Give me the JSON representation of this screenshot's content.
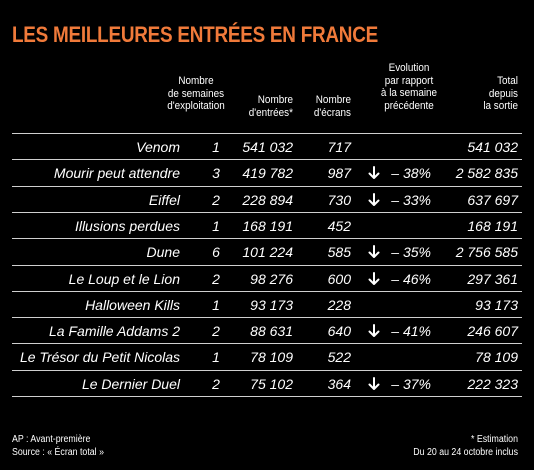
{
  "title": "LES MEILLEURES ENTRÉES EN FRANCE",
  "headers": {
    "weeks": "Nombre\nde semaines\nd'exploitation",
    "entrees": "Nombre\nd'entrées*",
    "ecrans": "Nombre\nd'écrans",
    "evolution": "Evolution\npar rapport\nà la semaine\nprécédente",
    "total": "Total\ndepuis\nla sortie"
  },
  "rows": [
    {
      "title": "Venom",
      "weeks": "1",
      "entrees": "541 032",
      "ecrans": "717",
      "arrow": "",
      "evolution": "",
      "total": "541 032"
    },
    {
      "title": "Mourir peut attendre",
      "weeks": "3",
      "entrees": "419 782",
      "ecrans": "987",
      "arrow": "down",
      "evolution": "– 38%",
      "total": "2 582 835"
    },
    {
      "title": "Eiffel",
      "weeks": "2",
      "entrees": "228 894",
      "ecrans": "730",
      "arrow": "down",
      "evolution": "– 33%",
      "total": "637 697"
    },
    {
      "title": "Illusions perdues",
      "weeks": "1",
      "entrees": "168 191",
      "ecrans": "452",
      "arrow": "",
      "evolution": "",
      "total": "168 191"
    },
    {
      "title": "Dune",
      "weeks": "6",
      "entrees": "101 224",
      "ecrans": "585",
      "arrow": "down",
      "evolution": "– 35%",
      "total": "2 756 585"
    },
    {
      "title": "Le Loup et le Lion",
      "weeks": "2",
      "entrees": "98 276",
      "ecrans": "600",
      "arrow": "down",
      "evolution": "– 46%",
      "total": "297 361"
    },
    {
      "title": "Halloween Kills",
      "weeks": "1",
      "entrees": "93 173",
      "ecrans": "228",
      "arrow": "",
      "evolution": "",
      "total": "93 173"
    },
    {
      "title": "La Famille Addams 2",
      "weeks": "2",
      "entrees": "88 631",
      "ecrans": "640",
      "arrow": "down",
      "evolution": "– 41%",
      "total": "246 607"
    },
    {
      "title": "Le Trésor du Petit Nicolas",
      "weeks": "1",
      "entrees": "78 109",
      "ecrans": "522",
      "arrow": "",
      "evolution": "",
      "total": "78 109"
    },
    {
      "title": "Le Dernier Duel",
      "weeks": "2",
      "entrees": "75 102",
      "ecrans": "364",
      "arrow": "down",
      "evolution": "– 37%",
      "total": "222 323"
    }
  ],
  "footer": {
    "ap_note": "AP : Avant-première",
    "source": "Source : « Écran total »",
    "estimation": "* Estimation",
    "period": "Du 20 au 24 octobre inclus"
  },
  "colors": {
    "title": "#f07a3a",
    "background": "#000000",
    "text": "#ffffff",
    "separator": "#cfcfcf"
  },
  "icons": {
    "arrow_down": "arrow-down-icon"
  }
}
